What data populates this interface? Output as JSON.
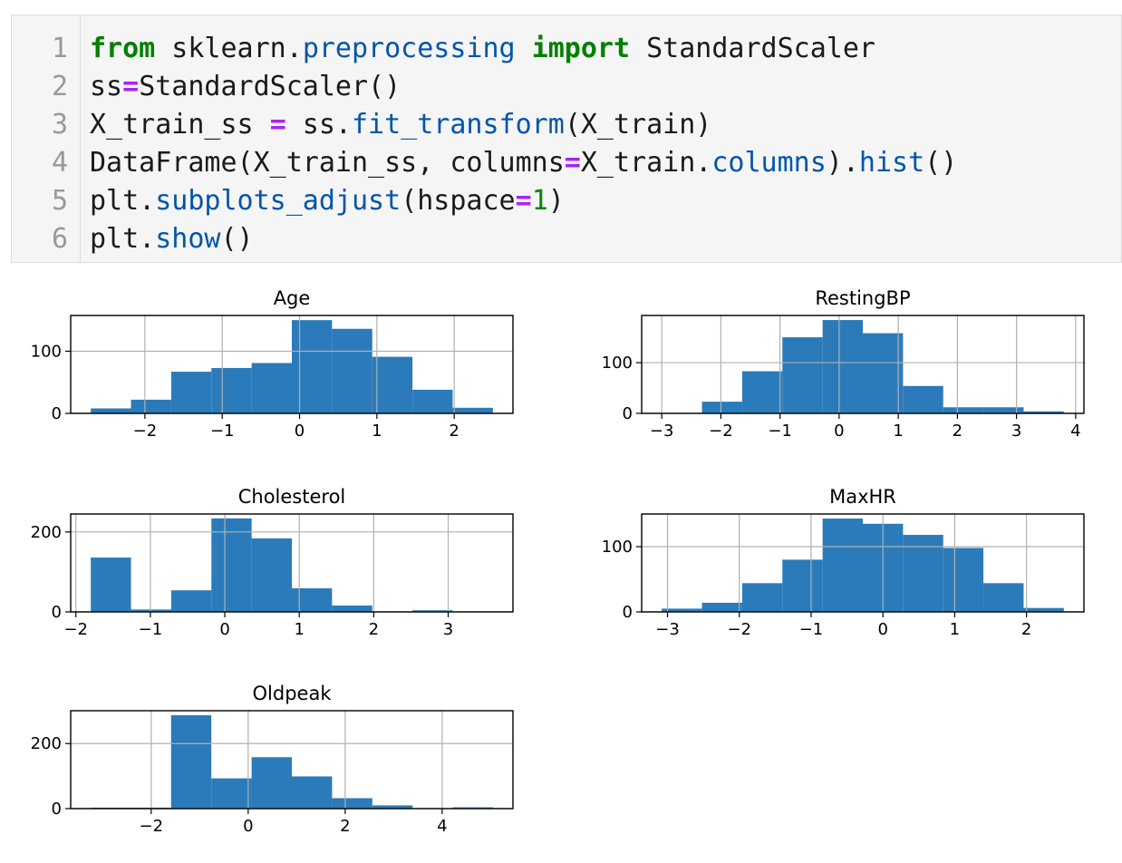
{
  "code_cell": {
    "lines": [
      {
        "num": "1",
        "tokens": [
          {
            "t": "from",
            "c": "kw"
          },
          {
            "t": " sklearn.",
            "c": ""
          },
          {
            "t": "preprocessing",
            "c": "fn"
          },
          {
            "t": " ",
            "c": ""
          },
          {
            "t": "import",
            "c": "kw"
          },
          {
            "t": " StandardScaler",
            "c": ""
          }
        ]
      },
      {
        "num": "2",
        "tokens": [
          {
            "t": "ss",
            "c": ""
          },
          {
            "t": "=",
            "c": "op"
          },
          {
            "t": "StandardScaler()",
            "c": ""
          }
        ]
      },
      {
        "num": "3",
        "tokens": [
          {
            "t": "X_train_ss ",
            "c": ""
          },
          {
            "t": "=",
            "c": "op"
          },
          {
            "t": " ss.",
            "c": ""
          },
          {
            "t": "fit_transform",
            "c": "fn"
          },
          {
            "t": "(X_train)",
            "c": ""
          }
        ]
      },
      {
        "num": "4",
        "tokens": [
          {
            "t": "DataFrame(X_train_ss, columns",
            "c": ""
          },
          {
            "t": "=",
            "c": "op"
          },
          {
            "t": "X_train.",
            "c": ""
          },
          {
            "t": "columns",
            "c": "fn"
          },
          {
            "t": ").",
            "c": ""
          },
          {
            "t": "hist",
            "c": "fn"
          },
          {
            "t": "()",
            "c": ""
          }
        ]
      },
      {
        "num": "5",
        "tokens": [
          {
            "t": "plt.",
            "c": ""
          },
          {
            "t": "subplots_adjust",
            "c": "fn"
          },
          {
            "t": "(hspace",
            "c": ""
          },
          {
            "t": "=",
            "c": "op"
          },
          {
            "t": "1",
            "c": "num"
          },
          {
            "t": ")",
            "c": ""
          }
        ]
      },
      {
        "num": "6",
        "tokens": [
          {
            "t": "plt.",
            "c": ""
          },
          {
            "t": "show",
            "c": "fn"
          },
          {
            "t": "()",
            "c": ""
          }
        ]
      }
    ]
  },
  "colors": {
    "bar": "#2b7bba",
    "grid": "#b0b0b0",
    "frame": "#000000"
  },
  "chart_data": [
    {
      "type": "bar",
      "title": "Age",
      "grid": true,
      "bins": [
        {
          "x0": -2.7,
          "x1": -2.18,
          "count": 8
        },
        {
          "x0": -2.18,
          "x1": -1.66,
          "count": 22
        },
        {
          "x0": -1.66,
          "x1": -1.14,
          "count": 67
        },
        {
          "x0": -1.14,
          "x1": -0.62,
          "count": 73
        },
        {
          "x0": -0.62,
          "x1": -0.1,
          "count": 81
        },
        {
          "x0": -0.1,
          "x1": 0.42,
          "count": 150
        },
        {
          "x0": 0.42,
          "x1": 0.94,
          "count": 136
        },
        {
          "x0": 0.94,
          "x1": 1.46,
          "count": 91
        },
        {
          "x0": 1.46,
          "x1": 1.98,
          "count": 38
        },
        {
          "x0": 1.98,
          "x1": 2.5,
          "count": 9
        }
      ],
      "xlim": [
        -2.96,
        2.76
      ],
      "ylim": [
        0,
        157.5
      ],
      "xticks": [
        -2,
        -1,
        0,
        1,
        2
      ],
      "yticks": [
        0,
        100
      ]
    },
    {
      "type": "bar",
      "title": "RestingBP",
      "grid": true,
      "bins": [
        {
          "x0": -3.0,
          "x1": -2.32,
          "count": 1
        },
        {
          "x0": -2.32,
          "x1": -1.64,
          "count": 23
        },
        {
          "x0": -1.64,
          "x1": -0.96,
          "count": 83
        },
        {
          "x0": -0.96,
          "x1": -0.28,
          "count": 150
        },
        {
          "x0": -0.28,
          "x1": 0.4,
          "count": 184
        },
        {
          "x0": 0.4,
          "x1": 1.08,
          "count": 158
        },
        {
          "x0": 1.08,
          "x1": 1.76,
          "count": 54
        },
        {
          "x0": 1.76,
          "x1": 2.44,
          "count": 12
        },
        {
          "x0": 2.44,
          "x1": 3.12,
          "count": 12
        },
        {
          "x0": 3.12,
          "x1": 3.8,
          "count": 4
        }
      ],
      "xlim": [
        -3.34,
        4.14
      ],
      "ylim": [
        0,
        193
      ],
      "xticks": [
        -3,
        -2,
        -1,
        0,
        1,
        2,
        3,
        4
      ],
      "yticks": [
        0,
        100
      ]
    },
    {
      "type": "bar",
      "title": "Cholesterol",
      "grid": true,
      "bins": [
        {
          "x0": -1.8,
          "x1": -1.26,
          "count": 136
        },
        {
          "x0": -1.26,
          "x1": -0.72,
          "count": 6
        },
        {
          "x0": -0.72,
          "x1": -0.18,
          "count": 54
        },
        {
          "x0": -0.18,
          "x1": 0.36,
          "count": 234
        },
        {
          "x0": 0.36,
          "x1": 0.9,
          "count": 184
        },
        {
          "x0": 0.9,
          "x1": 1.44,
          "count": 59
        },
        {
          "x0": 1.44,
          "x1": 1.98,
          "count": 16
        },
        {
          "x0": 1.98,
          "x1": 2.52,
          "count": 0
        },
        {
          "x0": 2.52,
          "x1": 3.06,
          "count": 4
        },
        {
          "x0": 3.06,
          "x1": 3.6,
          "count": 0
        }
      ],
      "xlim": [
        -2.07,
        3.87
      ],
      "ylim": [
        0,
        245
      ],
      "xticks": [
        -2,
        -1,
        0,
        1,
        2,
        3
      ],
      "yticks": [
        0,
        200
      ]
    },
    {
      "type": "bar",
      "title": "MaxHR",
      "grid": true,
      "bins": [
        {
          "x0": -3.08,
          "x1": -2.52,
          "count": 5
        },
        {
          "x0": -2.52,
          "x1": -1.96,
          "count": 14
        },
        {
          "x0": -1.96,
          "x1": -1.4,
          "count": 44
        },
        {
          "x0": -1.4,
          "x1": -0.84,
          "count": 80
        },
        {
          "x0": -0.84,
          "x1": -0.28,
          "count": 143
        },
        {
          "x0": -0.28,
          "x1": 0.28,
          "count": 135
        },
        {
          "x0": 0.28,
          "x1": 0.84,
          "count": 118
        },
        {
          "x0": 0.84,
          "x1": 1.4,
          "count": 98
        },
        {
          "x0": 1.4,
          "x1": 1.96,
          "count": 44
        },
        {
          "x0": 1.96,
          "x1": 2.52,
          "count": 6
        }
      ],
      "xlim": [
        -3.36,
        2.8
      ],
      "ylim": [
        0,
        150
      ],
      "xticks": [
        -3,
        -2,
        -1,
        0,
        1,
        2
      ],
      "yticks": [
        0,
        100
      ]
    },
    {
      "type": "bar",
      "title": "Oldpeak",
      "grid": true,
      "bins": [
        {
          "x0": -3.25,
          "x1": -2.42,
          "count": 3
        },
        {
          "x0": -2.42,
          "x1": -1.59,
          "count": 3
        },
        {
          "x0": -1.59,
          "x1": -0.76,
          "count": 287
        },
        {
          "x0": -0.76,
          "x1": 0.07,
          "count": 93
        },
        {
          "x0": 0.07,
          "x1": 0.9,
          "count": 158
        },
        {
          "x0": 0.9,
          "x1": 1.73,
          "count": 99
        },
        {
          "x0": 1.73,
          "x1": 2.56,
          "count": 32
        },
        {
          "x0": 2.56,
          "x1": 3.39,
          "count": 10
        },
        {
          "x0": 3.39,
          "x1": 4.22,
          "count": 0
        },
        {
          "x0": 4.22,
          "x1": 5.05,
          "count": 4
        }
      ],
      "xlim": [
        -3.66,
        5.46
      ],
      "ylim": [
        0,
        301
      ],
      "xticks": [
        -2,
        0,
        2,
        4
      ],
      "yticks": [
        0,
        200
      ]
    }
  ]
}
